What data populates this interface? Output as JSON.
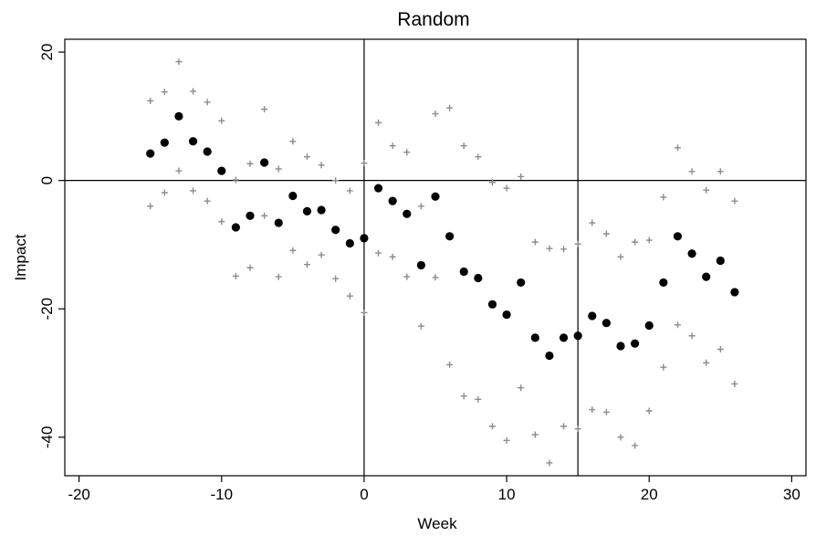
{
  "chart_data": {
    "type": "scatter",
    "title": "Random",
    "xlabel": "Week",
    "ylabel": "Impact",
    "xlim": [
      -21,
      31
    ],
    "ylim": [
      -46,
      22
    ],
    "xticks": [
      -20,
      -10,
      0,
      10,
      20,
      30
    ],
    "yticks": [
      -40,
      -20,
      0,
      20
    ],
    "reference_lines": {
      "x": [
        0,
        15
      ],
      "y": [
        0
      ]
    },
    "grid": false,
    "series": [
      {
        "role": "estimate",
        "marker": "filled-circle",
        "color": "#000000",
        "x": [
          -15,
          -14,
          -13,
          -12,
          -11,
          -10,
          -9,
          -8,
          -7,
          -6,
          -5,
          -4,
          -3,
          -2,
          -1,
          0,
          1,
          2,
          3,
          4,
          5,
          6,
          7,
          8,
          9,
          10,
          11,
          12,
          13,
          14,
          15,
          16,
          17,
          18,
          19,
          20,
          21,
          22,
          23,
          24,
          25,
          26
        ],
        "y": [
          4.2,
          5.9,
          10.0,
          6.1,
          4.5,
          1.5,
          -7.3,
          -5.5,
          2.8,
          -6.6,
          -2.4,
          -4.8,
          -4.6,
          -7.7,
          -9.8,
          -9.0,
          -1.2,
          -3.2,
          -5.2,
          -13.2,
          -2.5,
          -8.7,
          -14.2,
          -15.2,
          -19.3,
          -20.9,
          -15.9,
          -24.5,
          -27.3,
          -24.5,
          -24.2,
          -21.1,
          -22.2,
          -25.8,
          -25.4,
          -22.6,
          -15.9,
          -8.7,
          -11.4,
          -15.0,
          -12.5,
          -17.4
        ]
      },
      {
        "role": "upper-bound",
        "marker": "plus",
        "color": "#8c8c8c",
        "x": [
          -15,
          -14,
          -13,
          -12,
          -11,
          -10,
          -9,
          -8,
          -7,
          -6,
          -5,
          -4,
          -3,
          -2,
          -1,
          0,
          1,
          2,
          3,
          4,
          5,
          6,
          7,
          8,
          9,
          10,
          11,
          12,
          13,
          14,
          15,
          16,
          17,
          18,
          19,
          20,
          21,
          22,
          23,
          24,
          25,
          26
        ],
        "y": [
          12.4,
          13.8,
          18.5,
          13.9,
          12.2,
          9.3,
          0.1,
          2.6,
          11.1,
          1.8,
          6.1,
          3.7,
          2.4,
          0.0,
          -1.6,
          2.7,
          9.0,
          5.4,
          4.4,
          -4.0,
          10.4,
          11.3,
          5.4,
          3.7,
          -0.3,
          -1.2,
          0.6,
          -9.6,
          -10.6,
          -10.7,
          -9.9,
          -6.6,
          -8.3,
          -11.9,
          -9.6,
          -9.3,
          -2.6,
          5.1,
          1.4,
          -1.5,
          1.4,
          -3.2
        ]
      },
      {
        "role": "lower-bound",
        "marker": "plus",
        "color": "#8c8c8c",
        "x": [
          -15,
          -14,
          -13,
          -12,
          -11,
          -10,
          -9,
          -8,
          -7,
          -6,
          -5,
          -4,
          -3,
          -2,
          -1,
          0,
          1,
          2,
          3,
          4,
          5,
          6,
          7,
          8,
          9,
          10,
          11,
          12,
          13,
          14,
          15,
          16,
          17,
          18,
          19,
          20,
          21,
          22,
          23,
          24,
          25,
          26
        ],
        "y": [
          -4.0,
          -1.9,
          1.5,
          -1.6,
          -3.2,
          -6.4,
          -14.9,
          -13.6,
          -5.5,
          -15.0,
          -10.9,
          -13.1,
          -11.6,
          -15.3,
          -18.0,
          -20.6,
          -11.3,
          -11.9,
          -15.0,
          -22.7,
          -15.1,
          -28.7,
          -33.6,
          -34.1,
          -38.3,
          -40.5,
          -32.3,
          -39.6,
          -44.0,
          -38.3,
          -38.7,
          -35.7,
          -36.1,
          -40.0,
          -41.3,
          -35.9,
          -29.1,
          -22.5,
          -24.2,
          -28.4,
          -26.3,
          -31.7
        ]
      }
    ]
  }
}
